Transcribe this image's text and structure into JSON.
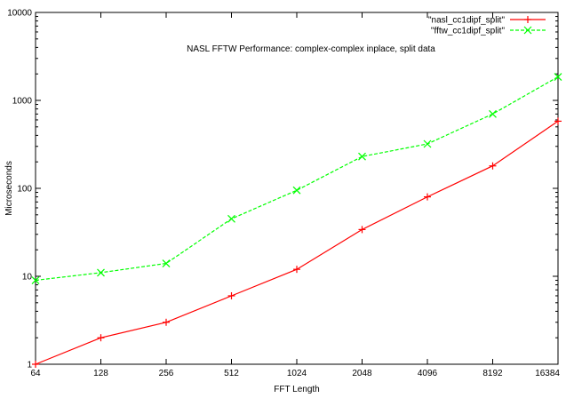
{
  "chart_data": {
    "type": "line",
    "title": "NASL FFTW Performance: complex-complex inplace, split data",
    "xlabel": "FFT Length",
    "ylabel": "Microseconds",
    "categories": [
      "64",
      "128",
      "256",
      "512",
      "1024",
      "2048",
      "4096",
      "8192",
      "16384"
    ],
    "y_scale": "log",
    "ylim": [
      1,
      10000
    ],
    "y_ticks": [
      1,
      10,
      100,
      1000,
      10000
    ],
    "y_tick_labels": [
      "1",
      "10",
      "100",
      "1000",
      "10000"
    ],
    "grid": false,
    "legend_position": "top-right",
    "series": [
      {
        "name": "\"nasl_cc1dipf_split\"",
        "color": "#ff0000",
        "marker": "plus",
        "dashed": false,
        "values": [
          1,
          2,
          3,
          6,
          12,
          34,
          80,
          180,
          580
        ]
      },
      {
        "name": "\"fftw_cc1dipf_split\"",
        "color": "#00ff00",
        "marker": "cross",
        "dashed": true,
        "values": [
          9,
          11,
          14,
          45,
          95,
          230,
          320,
          700,
          1850
        ]
      }
    ]
  }
}
